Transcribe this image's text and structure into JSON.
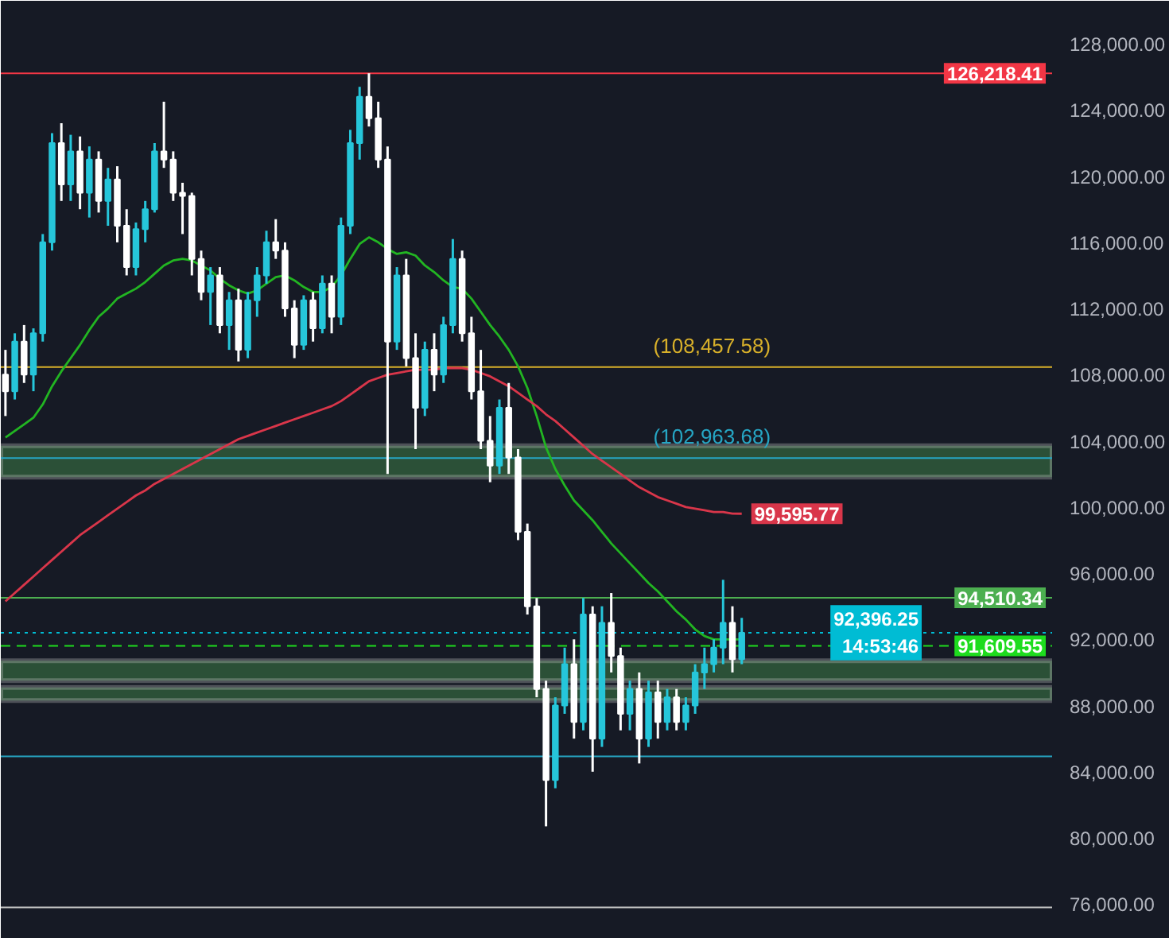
{
  "chart_data": {
    "type": "candlestick",
    "categories": [
      null,
      null,
      null,
      null,
      null,
      null,
      null,
      null,
      null,
      null,
      null,
      null,
      null,
      null,
      null,
      null,
      null,
      null,
      null,
      null,
      null,
      null,
      null,
      null,
      null,
      null,
      null,
      null,
      null,
      null,
      null,
      null,
      null,
      null,
      null,
      null,
      null,
      null,
      null,
      null,
      null,
      null,
      null,
      null,
      null,
      null,
      null,
      null,
      null,
      null,
      null,
      null,
      null,
      null,
      null,
      null,
      null,
      null,
      null,
      null,
      null,
      null,
      null,
      null,
      null,
      null,
      null,
      null,
      null,
      null,
      null,
      null,
      null,
      null,
      null,
      null,
      null,
      null,
      null,
      null
    ],
    "ohlc": [
      [
        108000,
        109500,
        105500,
        107000
      ],
      [
        107000,
        110500,
        106500,
        110000
      ],
      [
        110000,
        111000,
        107500,
        108000
      ],
      [
        108000,
        110800,
        107000,
        110500
      ],
      [
        110500,
        116500,
        110000,
        116000
      ],
      [
        116000,
        122600,
        115500,
        122000
      ],
      [
        122000,
        123200,
        118500,
        119500
      ],
      [
        119500,
        122500,
        118500,
        121500
      ],
      [
        121500,
        122400,
        118000,
        119000
      ],
      [
        119000,
        121800,
        117500,
        121000
      ],
      [
        121000,
        121500,
        117800,
        118500
      ],
      [
        118500,
        120500,
        117000,
        119800
      ],
      [
        119800,
        120600,
        116000,
        117000
      ],
      [
        117000,
        118000,
        114000,
        114500
      ],
      [
        114500,
        117200,
        114000,
        116800
      ],
      [
        116800,
        118500,
        116000,
        118000
      ],
      [
        118000,
        122000,
        117800,
        121500
      ],
      [
        121500,
        124500,
        120500,
        121000
      ],
      [
        121000,
        121500,
        118500,
        119000
      ],
      [
        119000,
        119600,
        116500,
        118800
      ],
      [
        118800,
        119000,
        114000,
        115000
      ],
      [
        115000,
        115500,
        112500,
        113000
      ],
      [
        113000,
        114500,
        111000,
        114000
      ],
      [
        114000,
        114500,
        110500,
        111000
      ],
      [
        111000,
        113000,
        109500,
        112500
      ],
      [
        112500,
        113200,
        108800,
        109500
      ],
      [
        109500,
        113000,
        109000,
        112500
      ],
      [
        112500,
        114500,
        111500,
        114000
      ],
      [
        114000,
        116700,
        113500,
        116000
      ],
      [
        116000,
        117400,
        115000,
        115500
      ],
      [
        115500,
        116000,
        111500,
        112000
      ],
      [
        112000,
        112500,
        109000,
        109800
      ],
      [
        109800,
        112800,
        109500,
        112500
      ],
      [
        112500,
        113000,
        110000,
        110800
      ],
      [
        110800,
        114000,
        110500,
        113500
      ],
      [
        113500,
        114000,
        110500,
        111500
      ],
      [
        111500,
        117500,
        111000,
        117000
      ],
      [
        117000,
        122800,
        116500,
        122000
      ],
      [
        122000,
        125400,
        121000,
        124800
      ],
      [
        124800,
        126218.41,
        123000,
        123500
      ],
      [
        123500,
        124500,
        120500,
        121000
      ],
      [
        121000,
        121800,
        102000,
        110000
      ],
      [
        110000,
        114500,
        109500,
        114000
      ],
      [
        114000,
        115000,
        108500,
        109000
      ],
      [
        109000,
        110500,
        103500,
        106000
      ],
      [
        106000,
        110000,
        105500,
        109500
      ],
      [
        109500,
        110500,
        107000,
        108000
      ],
      [
        108000,
        111500,
        107500,
        111000
      ],
      [
        111000,
        116200,
        110500,
        115000
      ],
      [
        115000,
        115500,
        110000,
        110500
      ],
      [
        110500,
        111500,
        106500,
        107000
      ],
      [
        107000,
        109500,
        103500,
        104000
      ],
      [
        104000,
        105500,
        101500,
        102500
      ],
      [
        102500,
        106500,
        102000,
        106000
      ],
      [
        106000,
        107500,
        102000,
        103000
      ],
      [
        103000,
        103500,
        98000,
        98500
      ],
      [
        98500,
        99000,
        93500,
        94000
      ],
      [
        94000,
        94500,
        88500,
        89000
      ],
      [
        89000,
        89500,
        80700,
        83500
      ],
      [
        83500,
        88500,
        83000,
        88000
      ],
      [
        88000,
        91500,
        87500,
        90500
      ],
      [
        90500,
        92000,
        86000,
        87000
      ],
      [
        87000,
        94500,
        86500,
        93500
      ],
      [
        93500,
        94000,
        84000,
        86000
      ],
      [
        86000,
        94000,
        85500,
        93000
      ],
      [
        93000,
        94800,
        90000,
        91000
      ],
      [
        91000,
        91500,
        86500,
        87500
      ],
      [
        87500,
        89500,
        86500,
        89000
      ],
      [
        89000,
        90000,
        84500,
        86000
      ],
      [
        86000,
        89500,
        85500,
        88800
      ],
      [
        88800,
        89500,
        86000,
        87000
      ],
      [
        87000,
        89000,
        86500,
        88500
      ],
      [
        88500,
        89000,
        86500,
        87000
      ],
      [
        87000,
        88500,
        86500,
        88000
      ],
      [
        88000,
        90500,
        87500,
        90000
      ],
      [
        90000,
        91500,
        89000,
        90500
      ],
      [
        90500,
        92000,
        90000,
        91500
      ],
      [
        91500,
        95600,
        90500,
        93000
      ],
      [
        93000,
        94000,
        90000,
        90800
      ],
      [
        90800,
        93300,
        90500,
        92396.25
      ]
    ],
    "colors": [
      "#ffffff",
      "#26c6da",
      "#ffffff",
      "#26c6da",
      "#26c6da",
      "#26c6da",
      "#ffffff",
      "#26c6da",
      "#ffffff",
      "#26c6da",
      "#ffffff",
      "#26c6da",
      "#ffffff",
      "#ffffff",
      "#26c6da",
      "#26c6da",
      "#26c6da",
      "#ffffff",
      "#ffffff",
      "#ffffff",
      "#ffffff",
      "#ffffff",
      "#26c6da",
      "#ffffff",
      "#26c6da",
      "#ffffff",
      "#26c6da",
      "#26c6da",
      "#26c6da",
      "#ffffff",
      "#ffffff",
      "#ffffff",
      "#26c6da",
      "#ffffff",
      "#26c6da",
      "#ffffff",
      "#26c6da",
      "#26c6da",
      "#26c6da",
      "#ffffff",
      "#ffffff",
      "#ffffff",
      "#26c6da",
      "#ffffff",
      "#ffffff",
      "#26c6da",
      "#ffffff",
      "#26c6da",
      "#26c6da",
      "#ffffff",
      "#ffffff",
      "#ffffff",
      "#ffffff",
      "#26c6da",
      "#ffffff",
      "#ffffff",
      "#ffffff",
      "#ffffff",
      "#ffffff",
      "#26c6da",
      "#26c6da",
      "#ffffff",
      "#26c6da",
      "#ffffff",
      "#26c6da",
      "#ffffff",
      "#ffffff",
      "#26c6da",
      "#ffffff",
      "#26c6da",
      "#ffffff",
      "#26c6da",
      "#ffffff",
      "#26c6da",
      "#26c6da",
      "#26c6da",
      "#26c6da",
      "#26c6da",
      "#ffffff",
      "#26c6da"
    ],
    "series": [
      {
        "type": "line",
        "color": "#22b522",
        "values": [
          104200,
          104600,
          105000,
          105400,
          106200,
          107300,
          108200,
          109000,
          109800,
          110700,
          111500,
          112000,
          112600,
          112900,
          113200,
          113600,
          114100,
          114600,
          114900,
          115000,
          114900,
          114600,
          114300,
          113800,
          113400,
          113100,
          112900,
          113100,
          113500,
          113900,
          114000,
          113700,
          113300,
          113000,
          113000,
          113300,
          114000,
          115000,
          115900,
          116300,
          116000,
          115600,
          115300,
          115400,
          115200,
          114600,
          114200,
          113700,
          113300,
          113200,
          112600,
          111800,
          111000,
          110300,
          109500,
          108500,
          107200,
          105500,
          103600,
          102300,
          101300,
          100400,
          99800,
          99200,
          98500,
          97800,
          97200,
          96600,
          96000,
          95400,
          94900,
          94300,
          93700,
          93200,
          92600,
          92200,
          92000,
          92000,
          92000,
          92000
        ]
      },
      {
        "type": "line",
        "color": "#d9364a",
        "values": [
          94300,
          94800,
          95300,
          95800,
          96300,
          96800,
          97300,
          97800,
          98300,
          98700,
          99100,
          99500,
          99900,
          100300,
          100700,
          101000,
          101400,
          101700,
          102000,
          102300,
          102600,
          102900,
          103200,
          103500,
          103800,
          104100,
          104300,
          104500,
          104700,
          104900,
          105100,
          105300,
          105500,
          105700,
          105900,
          106100,
          106400,
          106800,
          107200,
          107600,
          107800,
          108000,
          108100,
          108200,
          108300,
          108300,
          108300,
          108400,
          108400,
          108400,
          108300,
          108100,
          107900,
          107600,
          107300,
          106900,
          106500,
          106100,
          105600,
          105200,
          104700,
          104200,
          103700,
          103200,
          102800,
          102400,
          102000,
          101600,
          101200,
          100900,
          100600,
          100400,
          100200,
          100000,
          99900,
          99800,
          99700,
          99700,
          99600,
          99595.77
        ],
        "value_labels": [
          null,
          null,
          null,
          null,
          null,
          null,
          null,
          null,
          null,
          null,
          null,
          null,
          null,
          null,
          null,
          null,
          null,
          null,
          null,
          null,
          null,
          null,
          null,
          null,
          null,
          null,
          null,
          null,
          null,
          null,
          null,
          null,
          null,
          null,
          null,
          null,
          null,
          null,
          null,
          null,
          null,
          null,
          null,
          null,
          null,
          null,
          null,
          null,
          null,
          null,
          null,
          null,
          null,
          null,
          null,
          null,
          null,
          null,
          null,
          null,
          null,
          null,
          null,
          null,
          null,
          null,
          null,
          null,
          null,
          null,
          null,
          null,
          null,
          null,
          null,
          null,
          null,
          null,
          null,
          "99,595.77"
        ]
      }
    ],
    "ylim": [
      73900,
      130600
    ],
    "yticks": [
      {
        "value": 76000,
        "label": "76,000.00"
      },
      {
        "value": 80000,
        "label": "80,000.00"
      },
      {
        "value": 84000,
        "label": "84,000.00"
      },
      {
        "value": 88000,
        "label": "88,000.00"
      },
      {
        "value": 92000,
        "label": "92,000.00"
      },
      {
        "value": 96000,
        "label": "96,000.00"
      },
      {
        "value": 100000,
        "label": "100,000.00"
      },
      {
        "value": 104000,
        "label": "104,000.00"
      },
      {
        "value": 108000,
        "label": "108,000.00"
      },
      {
        "value": 112000,
        "label": "112,000.00"
      },
      {
        "value": 116000,
        "label": "116,000.00"
      },
      {
        "value": 120000,
        "label": "120,000.00"
      },
      {
        "value": 124000,
        "label": "124,000.00"
      },
      {
        "value": 128000,
        "label": "128,000.00"
      }
    ],
    "tick_labels": "y",
    "ref_lines": [
      {
        "axis": "y",
        "value": 126218.41,
        "label": "126,218.41",
        "color": "#f23645"
      },
      {
        "axis": "y",
        "value": 108457.58,
        "color": "#d8b02a"
      },
      {
        "axis": "y",
        "value": 102963.68,
        "color": "#26a6c4"
      },
      {
        "axis": "y",
        "value": 94510.34,
        "label": "94,510.34",
        "color": "#4caf50"
      },
      {
        "axis": "y",
        "value": 92396.25,
        "label": "92,396.25\n14:53:46",
        "color": "#00bcd4",
        "line_style": "dotted"
      },
      {
        "axis": "y",
        "value": 91609.55,
        "label": "91,609.55",
        "color": "#1edc1e",
        "line_style": "dashed"
      },
      {
        "axis": "y",
        "value": 84930,
        "color": "#26a6c4"
      },
      {
        "axis": "y",
        "value": 75800,
        "color": "#c8c8c8"
      }
    ],
    "bands": [
      {
        "axis": "y",
        "from": 101800,
        "to": 103700,
        "color": "#2f5a3b"
      },
      {
        "axis": "y",
        "from": 88300,
        "to": 89100,
        "color": "#2f5a3b"
      },
      {
        "axis": "y",
        "from": 89500,
        "to": 90700,
        "color": "#2f5a3b"
      }
    ],
    "annotations": [
      {
        "text": "(108,457.58)",
        "y": 108457.58
      },
      {
        "text": "(102,963.68)",
        "y": 102963.68
      }
    ]
  }
}
